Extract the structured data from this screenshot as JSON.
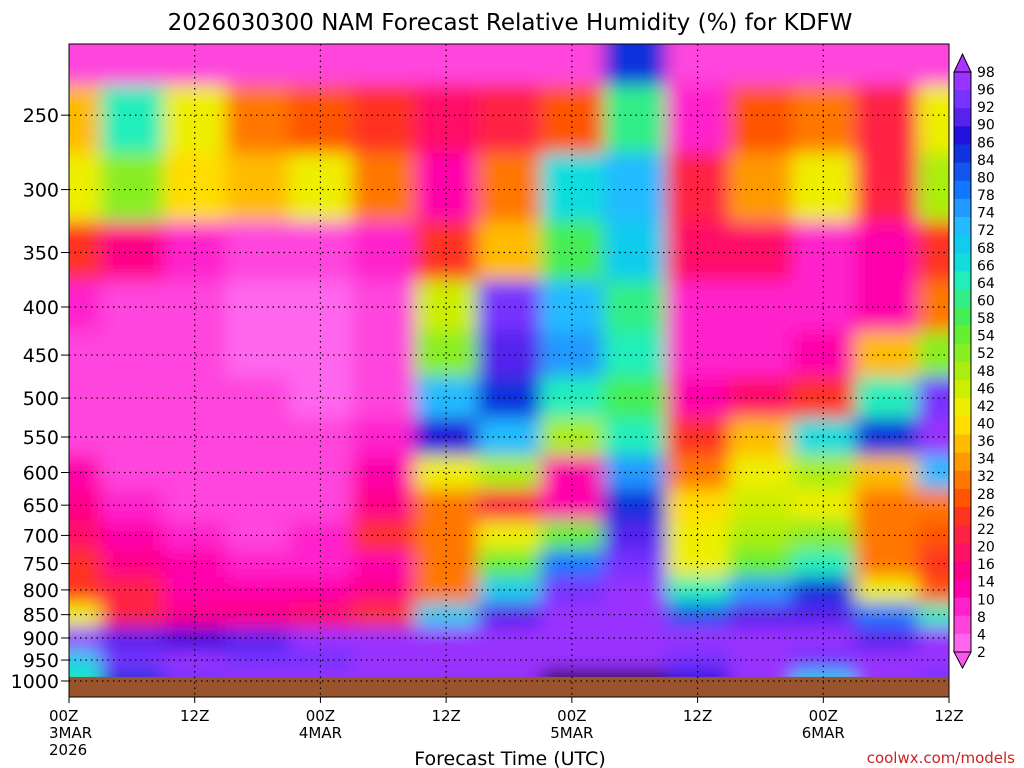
{
  "chart_data": {
    "type": "heatmap",
    "title": "2026030300 NAM Forecast Relative Humidity (%) for KDFW",
    "xlabel": "Forecast Time (UTC)",
    "credit": "coolwx.com/models",
    "y_scale": "pressure",
    "y_range": [
      1040,
      210
    ],
    "y_ticks": [
      250,
      300,
      350,
      400,
      450,
      500,
      550,
      600,
      650,
      700,
      750,
      800,
      850,
      900,
      950,
      1000
    ],
    "x_range_hours": [
      0,
      84
    ],
    "x_ticks": [
      {
        "hour": 0,
        "lines": [
          "00Z",
          "3MAR",
          "2026"
        ]
      },
      {
        "hour": 12,
        "lines": [
          "12Z"
        ]
      },
      {
        "hour": 24,
        "lines": [
          "00Z",
          "4MAR"
        ]
      },
      {
        "hour": 36,
        "lines": [
          "12Z"
        ]
      },
      {
        "hour": 48,
        "lines": [
          "00Z",
          "5MAR"
        ]
      },
      {
        "hour": 60,
        "lines": [
          "12Z"
        ]
      },
      {
        "hour": 72,
        "lines": [
          "00Z",
          "6MAR"
        ]
      },
      {
        "hour": 84,
        "lines": [
          "12Z"
        ]
      }
    ],
    "ground_level_hpa": 990,
    "colorbar_ticks": [
      98,
      96,
      92,
      90,
      86,
      84,
      80,
      78,
      74,
      72,
      68,
      66,
      64,
      60,
      58,
      54,
      52,
      48,
      46,
      42,
      40,
      36,
      34,
      32,
      28,
      26,
      22,
      20,
      16,
      14,
      10,
      8,
      4,
      2
    ],
    "colorbar_colors": [
      "#9933ff",
      "#7733ff",
      "#5522ee",
      "#2211dd",
      "#1133dd",
      "#1155ee",
      "#1177ff",
      "#2299ff",
      "#22bbff",
      "#11ccee",
      "#11dddd",
      "#22eebb",
      "#33ee88",
      "#44ee55",
      "#66ee33",
      "#88ee22",
      "#aaee11",
      "#ccee00",
      "#eeee00",
      "#ffdd00",
      "#ffbb00",
      "#ff9900",
      "#ff7700",
      "#ff5500",
      "#ff3322",
      "#ff2244",
      "#ff1166",
      "#ff0088",
      "#ff00aa",
      "#ff22cc",
      "#ff44dd",
      "#ff66ee"
    ],
    "levels": [
      1000,
      950,
      900,
      850,
      800,
      750,
      700,
      650,
      600,
      550,
      500,
      450,
      400,
      350,
      300,
      250,
      215
    ],
    "times": [
      0,
      6,
      12,
      18,
      24,
      30,
      36,
      42,
      48,
      54,
      60,
      66,
      72,
      78,
      84
    ],
    "rh": [
      [
        60,
        80,
        90,
        92,
        92,
        93,
        94,
        92,
        96,
        96,
        85,
        92,
        66,
        92,
        90
      ],
      [
        66,
        90,
        92,
        90,
        90,
        92,
        94,
        92,
        94,
        95,
        90,
        92,
        90,
        92,
        92
      ],
      [
        92,
        88,
        85,
        86,
        92,
        92,
        92,
        92,
        94,
        95,
        92,
        92,
        92,
        86,
        92
      ],
      [
        40,
        20,
        14,
        14,
        16,
        22,
        66,
        88,
        92,
        94,
        78,
        86,
        88,
        74,
        60
      ],
      [
        22,
        20,
        12,
        10,
        10,
        14,
        30,
        66,
        90,
        92,
        60,
        72,
        80,
        40,
        26
      ],
      [
        22,
        14,
        10,
        8,
        8,
        12,
        28,
        52,
        74,
        90,
        40,
        52,
        60,
        28,
        22
      ],
      [
        18,
        12,
        8,
        6,
        8,
        22,
        30,
        40,
        52,
        86,
        40,
        46,
        50,
        28,
        26
      ],
      [
        14,
        8,
        4,
        4,
        4,
        14,
        28,
        20,
        12,
        80,
        36,
        42,
        40,
        28,
        30
      ],
      [
        10,
        6,
        4,
        4,
        4,
        10,
        40,
        46,
        12,
        72,
        30,
        40,
        46,
        34,
        70
      ],
      [
        6,
        4,
        4,
        4,
        4,
        8,
        84,
        68,
        46,
        62,
        22,
        34,
        64,
        82,
        92
      ],
      [
        6,
        4,
        4,
        4,
        2,
        6,
        70,
        80,
        60,
        56,
        10,
        16,
        22,
        60,
        90
      ],
      [
        6,
        4,
        4,
        2,
        2,
        6,
        50,
        88,
        72,
        60,
        8,
        8,
        12,
        34,
        50
      ],
      [
        8,
        6,
        4,
        2,
        2,
        4,
        44,
        90,
        68,
        58,
        8,
        8,
        8,
        12,
        28
      ],
      [
        22,
        14,
        8,
        4,
        4,
        8,
        24,
        34,
        56,
        66,
        16,
        18,
        8,
        12,
        22
      ],
      [
        40,
        48,
        36,
        34,
        40,
        30,
        12,
        30,
        64,
        70,
        20,
        32,
        40,
        20,
        46
      ],
      [
        34,
        60,
        40,
        30,
        26,
        24,
        16,
        20,
        26,
        58,
        8,
        26,
        30,
        20,
        40
      ],
      [
        4,
        4,
        4,
        4,
        4,
        4,
        4,
        4,
        4,
        82,
        4,
        4,
        4,
        4,
        4
      ]
    ]
  }
}
